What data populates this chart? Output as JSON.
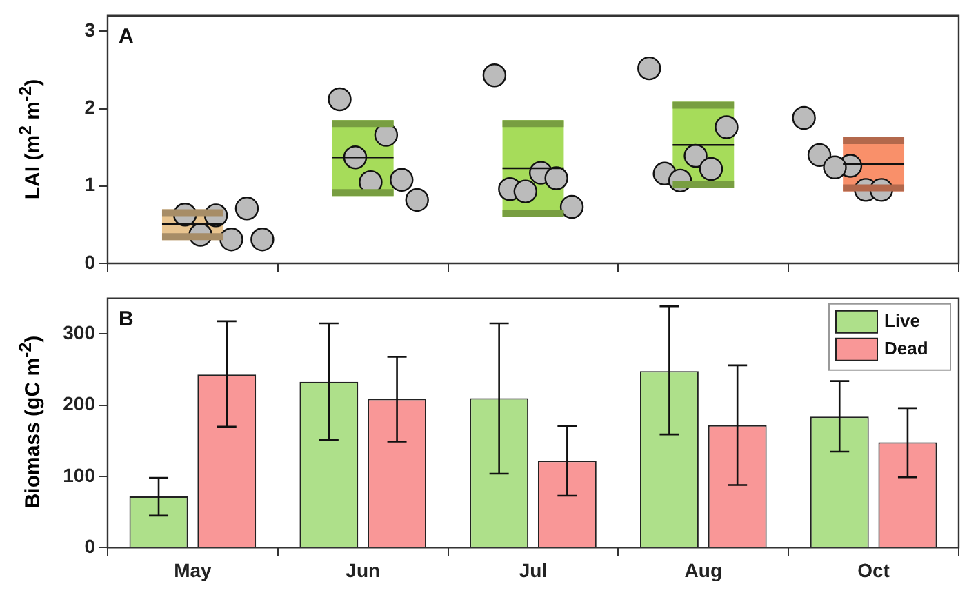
{
  "chart_data": [
    {
      "type": "box",
      "ylabel": "LAI (m$^{2}$ m$^{-2}$)",
      "annotations": [
        "A"
      ],
      "categories": [
        "May",
        "Jun",
        "Jul",
        "Aug",
        "Oct"
      ],
      "ylim": [
        0,
        3.2
      ],
      "yticks": [
        0,
        1,
        2,
        3
      ],
      "tick_labels": "y",
      "grid": false,
      "legend": false,
      "series": [
        {
          "type": "box",
          "colors": [
            "#e8c48f",
            "#a6dc5a",
            "#a6dc5a",
            "#a6dc5a",
            "#f9906a"
          ],
          "boxes": [
            {
              "low": 0.3,
              "q1": 0.3,
              "median": 0.51,
              "q3": 0.7,
              "high": 0.7
            },
            {
              "low": 0.87,
              "q1": 0.87,
              "median": 1.37,
              "q3": 1.85,
              "high": 1.85
            },
            {
              "low": 0.6,
              "q1": 0.6,
              "median": 1.23,
              "q3": 1.85,
              "high": 1.85
            },
            {
              "low": 0.97,
              "q1": 0.97,
              "median": 1.53,
              "q3": 2.09,
              "high": 2.09
            },
            {
              "low": 0.93,
              "q1": 0.93,
              "median": 1.28,
              "q3": 1.63,
              "high": 1.63
            }
          ]
        },
        {
          "type": "scatter",
          "color": "#bbbbbb",
          "marker": "circle",
          "x": [
            "May",
            "May",
            "May",
            "May",
            "May",
            "May",
            "Jun",
            "Jun",
            "Jun",
            "Jun",
            "Jun",
            "Jun",
            "Jul",
            "Jul",
            "Jul",
            "Jul",
            "Jul",
            "Jul",
            "Aug",
            "Aug",
            "Aug",
            "Aug",
            "Aug",
            "Aug",
            "Oct",
            "Oct",
            "Oct",
            "Oct",
            "Oct",
            "Oct"
          ],
          "values": [
            0.63,
            0.31,
            0.37,
            0.71,
            0.62,
            0.31,
            2.12,
            1.66,
            1.37,
            1.08,
            1.05,
            0.82,
            2.43,
            1.17,
            0.96,
            1.1,
            0.93,
            0.73,
            2.52,
            1.39,
            1.16,
            1.22,
            1.07,
            1.76,
            1.88,
            1.26,
            1.4,
            0.95,
            1.24,
            0.95
          ]
        }
      ]
    },
    {
      "type": "bar",
      "ylabel": "Biomass (gC m$^{-2}$)",
      "annotations": [
        "B"
      ],
      "categories": [
        "May",
        "Jun",
        "Jul",
        "Aug",
        "Oct"
      ],
      "ylim": [
        0,
        350
      ],
      "yticks": [
        0,
        100,
        200,
        300
      ],
      "grid": false,
      "legend": "top right",
      "series": [
        {
          "name": "Live",
          "color": "#aee08a",
          "values": [
            72,
            233,
            210,
            248,
            184
          ],
          "errors": [
            [
              45,
              98
            ],
            [
              151,
              315
            ],
            [
              104,
              315
            ],
            [
              159,
              339
            ],
            [
              135,
              234
            ]
          ]
        },
        {
          "name": "Dead",
          "color": "#f99797",
          "values": [
            243,
            209,
            122,
            172,
            148
          ],
          "errors": [
            [
              170,
              318
            ],
            [
              149,
              268
            ],
            [
              73,
              171
            ],
            [
              88,
              256
            ],
            [
              99,
              196
            ]
          ]
        }
      ]
    }
  ]
}
